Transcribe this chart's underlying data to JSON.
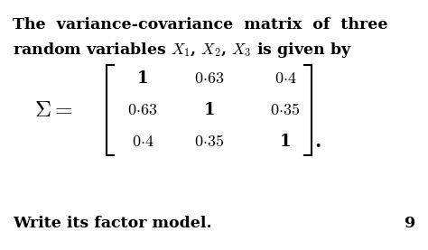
{
  "bg_color": "#ffffff",
  "text_color": "#000000",
  "line1": "The  variance-covariance  matrix  of  three",
  "line2_plain": "random variables ",
  "line2_math": "$X_1$, $X_2$, $X_3$ is given by",
  "footer": "Write its factor model.",
  "page_num": "9",
  "font_size_main": 12.5,
  "font_size_matrix": 13,
  "matrix_rows": [
    [
      "1",
      "0{\\cdot}63",
      "0{\\cdot}4"
    ],
    [
      "0{\\cdot}63",
      "1",
      "0{\\cdot}35"
    ],
    [
      "0{\\cdot}4",
      "0{\\cdot}35",
      "1"
    ]
  ]
}
